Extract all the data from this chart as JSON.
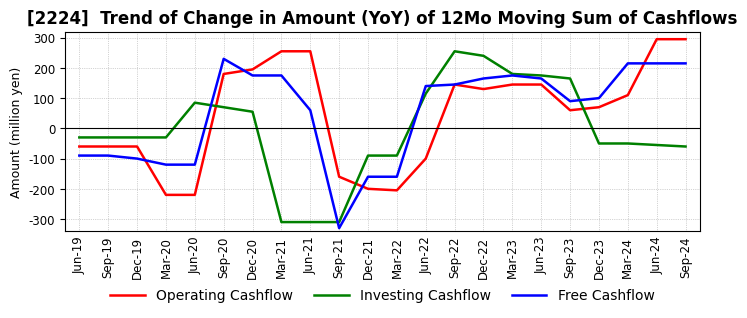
{
  "title": "[2224]  Trend of Change in Amount (YoY) of 12Mo Moving Sum of Cashflows",
  "ylabel": "Amount (million yen)",
  "ylim": [
    -340,
    320
  ],
  "yticks": [
    -300,
    -200,
    -100,
    0,
    100,
    200,
    300
  ],
  "x_labels": [
    "Jun-19",
    "Sep-19",
    "Dec-19",
    "Mar-20",
    "Jun-20",
    "Sep-20",
    "Dec-20",
    "Mar-21",
    "Jun-21",
    "Sep-21",
    "Dec-21",
    "Mar-22",
    "Jun-22",
    "Sep-22",
    "Dec-22",
    "Mar-23",
    "Jun-23",
    "Sep-23",
    "Dec-23",
    "Mar-24",
    "Jun-24",
    "Sep-24"
  ],
  "operating": [
    -60,
    -60,
    -60,
    -220,
    -220,
    180,
    195,
    255,
    255,
    -160,
    -200,
    -205,
    -100,
    145,
    130,
    145,
    145,
    60,
    70,
    110,
    295,
    295
  ],
  "investing": [
    -30,
    -30,
    -30,
    -30,
    85,
    70,
    55,
    -310,
    -310,
    -310,
    -90,
    -90,
    115,
    255,
    240,
    180,
    175,
    165,
    -50,
    -50,
    -55,
    -60
  ],
  "free": [
    -90,
    -90,
    -100,
    -120,
    -120,
    230,
    175,
    175,
    60,
    -330,
    -160,
    -160,
    140,
    145,
    165,
    175,
    165,
    90,
    100,
    215,
    215,
    215
  ],
  "operating_color": "#ff0000",
  "investing_color": "#008000",
  "free_color": "#0000ff",
  "grid_color": "#aaaaaa",
  "bg_color": "#ffffff",
  "title_fontsize": 12,
  "label_fontsize": 9,
  "tick_fontsize": 8.5,
  "legend_fontsize": 10
}
